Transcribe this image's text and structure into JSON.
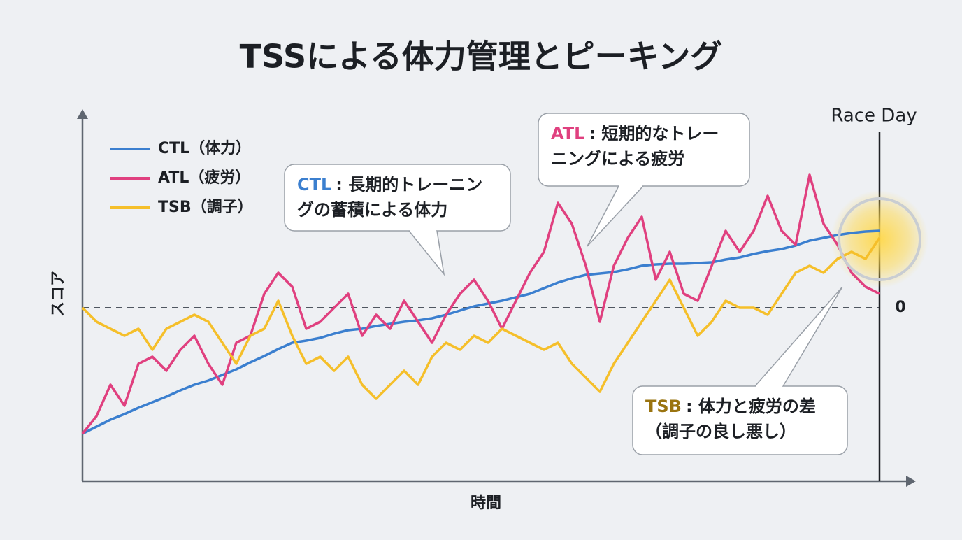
{
  "chart_data": {
    "type": "line",
    "title": "TSSによる体力管理とピーキング",
    "x_label": "時間",
    "y_label": "スコア",
    "categories": [
      null,
      null,
      null,
      null,
      null,
      null,
      null,
      null,
      null,
      null,
      null,
      null,
      null,
      null,
      null,
      null,
      null,
      null,
      null,
      null,
      null,
      null,
      null,
      null,
      null,
      null,
      null,
      null,
      null,
      null,
      null,
      null,
      null,
      null,
      null,
      null,
      null,
      null,
      null,
      null,
      null,
      null,
      null,
      null,
      null,
      null,
      null,
      null,
      null,
      null,
      null,
      null,
      null,
      null,
      null,
      null,
      null,
      null
    ],
    "ylim": [
      -25,
      27
    ],
    "yticks": [
      0
    ],
    "legend": "top-left",
    "marker_label": "Race Day",
    "series": [
      {
        "name": "CTL（体力）",
        "color": "#3b7fcf",
        "values": [
          -18,
          -17,
          -16,
          -15.2,
          -14.3,
          -13.5,
          -12.7,
          -11.8,
          -11,
          -10.4,
          -9.6,
          -8.8,
          -7.8,
          -6.9,
          -5.9,
          -5,
          -4.7,
          -4.3,
          -3.7,
          -3.2,
          -3,
          -2.6,
          -2.3,
          -2,
          -1.8,
          -1.5,
          -1,
          -0.4,
          0.2,
          0.6,
          1,
          1.5,
          2,
          2.8,
          3.6,
          4.2,
          4.7,
          4.9,
          5.1,
          5.5,
          6,
          6.2,
          6.3,
          6.3,
          6.4,
          6.5,
          6.9,
          7.2,
          7.7,
          8.1,
          8.4,
          8.9,
          9.6,
          10,
          10.4,
          10.7,
          10.9,
          11
        ]
      },
      {
        "name": "ATL（疲労）",
        "color": "#e0407f",
        "values": [
          -18,
          -15.5,
          -11,
          -14,
          -8,
          -7,
          -9,
          -6,
          -4,
          -8,
          -11,
          -5,
          -4,
          2,
          5,
          3,
          -3,
          -2,
          0,
          2,
          -4,
          -1,
          -3,
          1,
          -2,
          -5,
          -1,
          2,
          4,
          1,
          -3,
          1,
          5,
          8,
          15,
          12,
          6,
          -2,
          6,
          10,
          13,
          4,
          8,
          2,
          1,
          6,
          11,
          8,
          11,
          16,
          11,
          9,
          19,
          12,
          9,
          5,
          3,
          2
        ]
      },
      {
        "name": "TSB（調子）",
        "color": "#f5bf2a",
        "values": [
          0,
          -2,
          -3,
          -4,
          -3,
          -6,
          -3,
          -2,
          -1,
          -2,
          -5,
          -8,
          -4,
          -3,
          1,
          -4,
          -8,
          -7,
          -9,
          -7,
          -11,
          -13,
          -11,
          -9,
          -11,
          -7,
          -5,
          -6,
          -4,
          -5,
          -3,
          -4,
          -5,
          -6,
          -5,
          -8,
          -10,
          -12,
          -8,
          -5,
          -2,
          1,
          4,
          0,
          -4,
          -2,
          1,
          0,
          0,
          -1,
          2,
          5,
          6,
          5,
          7,
          8,
          7,
          10
        ]
      }
    ],
    "annotations": [
      {
        "label": "CTL",
        "color": "#3b7fcf",
        "lines": [
          ": 長期的トレーニン",
          "グの蓄積による体力"
        ]
      },
      {
        "label": "ATL",
        "color": "#e0407f",
        "lines": [
          ": 短期的なトレー",
          "ニングによる疲労"
        ]
      },
      {
        "label": "TSB",
        "color": "#9a7410",
        "lines": [
          ": 体力と疲労の差",
          "（調子の良し悪し）"
        ]
      }
    ]
  }
}
